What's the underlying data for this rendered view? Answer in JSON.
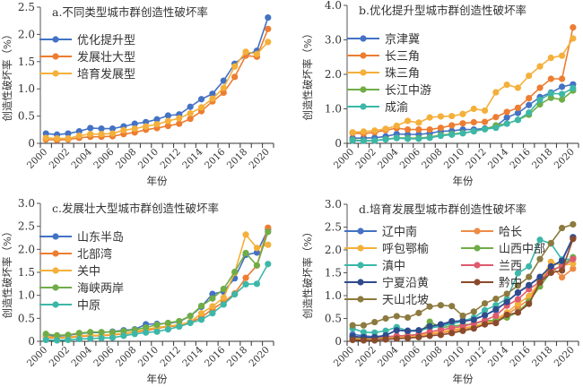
{
  "chart_data": [
    {
      "type": "line",
      "title": "a.不同类型城市群创造性破坏率",
      "xlabel": "年份",
      "ylabel": "创造性破坏率（%）",
      "ylim": [
        0,
        2.5
      ],
      "yticks": [
        "0",
        "0.5",
        "1.0",
        "1.5",
        "2.0",
        "2.5"
      ],
      "ytick_values": [
        0,
        0.5,
        1.0,
        1.5,
        2.0,
        2.5
      ],
      "x": [
        2000,
        2001,
        2002,
        2003,
        2004,
        2005,
        2006,
        2007,
        2008,
        2009,
        2010,
        2011,
        2012,
        2013,
        2014,
        2015,
        2016,
        2017,
        2018,
        2019,
        2020
      ],
      "xtick_labels": [
        "2000",
        "2002",
        "2004",
        "2006",
        "2008",
        "2010",
        "2012",
        "2014",
        "2016",
        "2018",
        "2020"
      ],
      "legend_columns": 1,
      "legend": "top-left",
      "series": [
        {
          "name": "优化提升型",
          "color": "#4472c4",
          "values": [
            0.18,
            0.16,
            0.18,
            0.22,
            0.28,
            0.27,
            0.27,
            0.31,
            0.36,
            0.39,
            0.44,
            0.51,
            0.53,
            0.67,
            0.81,
            0.91,
            1.15,
            1.46,
            1.62,
            1.7,
            2.31
          ]
        },
        {
          "name": "发展壮大型",
          "color": "#ed7d31",
          "values": [
            0.07,
            0.06,
            0.07,
            0.1,
            0.12,
            0.12,
            0.13,
            0.17,
            0.2,
            0.25,
            0.28,
            0.32,
            0.36,
            0.45,
            0.59,
            0.77,
            0.93,
            1.22,
            1.61,
            1.59,
            2.1
          ]
        },
        {
          "name": "培育发展型",
          "color": "#f4b03a",
          "values": [
            0.1,
            0.09,
            0.09,
            0.14,
            0.17,
            0.17,
            0.18,
            0.24,
            0.27,
            0.31,
            0.35,
            0.41,
            0.46,
            0.55,
            0.66,
            0.82,
            1.02,
            1.41,
            1.68,
            1.64,
            1.86
          ]
        }
      ]
    },
    {
      "type": "line",
      "title": "b.优化提升型城市群创造性破坏率",
      "xlabel": "年份",
      "ylabel": "创造性破坏率（%）",
      "ylim": [
        0,
        4.0
      ],
      "yticks": [
        "0",
        "1.0",
        "2.0",
        "3.0",
        "4.0"
      ],
      "ytick_values": [
        0,
        1.0,
        2.0,
        3.0,
        4.0
      ],
      "x": [
        2000,
        2001,
        2002,
        2003,
        2004,
        2005,
        2006,
        2007,
        2008,
        2009,
        2010,
        2011,
        2012,
        2013,
        2014,
        2015,
        2016,
        2017,
        2018,
        2019,
        2020
      ],
      "xtick_labels": [
        "2000",
        "2002",
        "2004",
        "2006",
        "2008",
        "2010",
        "2012",
        "2014",
        "2016",
        "2018",
        "2020"
      ],
      "legend_columns": 1,
      "legend": "top-left",
      "series": [
        {
          "name": "京津冀",
          "color": "#4472c4",
          "values": [
            0.15,
            0.15,
            0.16,
            0.2,
            0.27,
            0.26,
            0.26,
            0.29,
            0.35,
            0.36,
            0.4,
            0.4,
            0.43,
            0.49,
            0.75,
            0.88,
            1.11,
            1.34,
            1.47,
            1.64,
            1.71
          ]
        },
        {
          "name": "长三角",
          "color": "#ed7d31",
          "values": [
            0.3,
            0.28,
            0.32,
            0.38,
            0.44,
            0.4,
            0.4,
            0.4,
            0.45,
            0.52,
            0.58,
            0.61,
            0.62,
            0.76,
            0.91,
            1.03,
            1.31,
            1.61,
            1.87,
            1.87,
            3.36
          ]
        },
        {
          "name": "珠三角",
          "color": "#f4b03a",
          "values": [
            0.32,
            0.34,
            0.37,
            0.42,
            0.51,
            0.65,
            0.6,
            0.75,
            0.78,
            0.79,
            0.85,
            1.0,
            0.95,
            1.48,
            1.7,
            1.61,
            1.96,
            2.23,
            2.48,
            2.54,
            3.04
          ]
        },
        {
          "name": "长江中游",
          "color": "#70ad47",
          "values": [
            0.1,
            0.08,
            0.08,
            0.12,
            0.16,
            0.15,
            0.15,
            0.18,
            0.24,
            0.27,
            0.3,
            0.35,
            0.41,
            0.52,
            0.57,
            0.68,
            0.83,
            1.13,
            1.32,
            1.27,
            1.53
          ]
        },
        {
          "name": "成渝",
          "color": "#3cb7a8",
          "values": [
            0.08,
            0.07,
            0.08,
            0.11,
            0.15,
            0.13,
            0.13,
            0.16,
            0.22,
            0.25,
            0.29,
            0.35,
            0.41,
            0.45,
            0.57,
            0.68,
            0.89,
            1.26,
            1.45,
            1.43,
            1.6
          ]
        }
      ]
    },
    {
      "type": "line",
      "title": "c.发展壮大型城市群创造性破坏率",
      "xlabel": "年份",
      "ylabel": "创造性破坏率（%）",
      "ylim": [
        0,
        3.0
      ],
      "yticks": [
        "0",
        "0.5",
        "1.0",
        "1.5",
        "2.0",
        "2.5",
        "3.0"
      ],
      "ytick_values": [
        0,
        0.5,
        1.0,
        1.5,
        2.0,
        2.5,
        3.0
      ],
      "x": [
        2000,
        2001,
        2002,
        2003,
        2004,
        2005,
        2006,
        2007,
        2008,
        2009,
        2010,
        2011,
        2012,
        2013,
        2014,
        2015,
        2016,
        2017,
        2018,
        2019,
        2020
      ],
      "xtick_labels": [
        "2000",
        "2002",
        "2004",
        "2006",
        "2008",
        "2010",
        "2012",
        "2014",
        "2016",
        "2018",
        "2020"
      ],
      "legend_columns": 1,
      "legend": "top-left",
      "series": [
        {
          "name": "山东半岛",
          "color": "#4472c4",
          "values": [
            0.12,
            0.11,
            0.13,
            0.17,
            0.19,
            0.19,
            0.21,
            0.24,
            0.26,
            0.37,
            0.38,
            0.39,
            0.43,
            0.55,
            0.75,
            1.03,
            1.08,
            1.37,
            1.88,
            1.93,
            2.43
          ]
        },
        {
          "name": "北部湾",
          "color": "#ed7d31",
          "values": [
            0.08,
            0.07,
            0.08,
            0.1,
            0.12,
            0.12,
            0.14,
            0.16,
            0.2,
            0.23,
            0.28,
            0.32,
            0.34,
            0.42,
            0.52,
            0.7,
            0.85,
            1.04,
            1.38,
            1.65,
            2.47
          ]
        },
        {
          "name": "关中",
          "color": "#f4b03a",
          "values": [
            0.11,
            0.08,
            0.09,
            0.12,
            0.13,
            0.13,
            0.15,
            0.17,
            0.21,
            0.26,
            0.3,
            0.33,
            0.36,
            0.42,
            0.61,
            0.76,
            0.95,
            1.49,
            2.32,
            2.03,
            2.1
          ]
        },
        {
          "name": "海峡两岸",
          "color": "#70ad47",
          "values": [
            0.16,
            0.13,
            0.14,
            0.18,
            0.2,
            0.2,
            0.2,
            0.22,
            0.25,
            0.3,
            0.36,
            0.4,
            0.44,
            0.55,
            0.77,
            0.93,
            1.14,
            1.51,
            1.92,
            1.65,
            2.38
          ]
        },
        {
          "name": "中原",
          "color": "#3cb7a8",
          "values": [
            0.03,
            0.02,
            0.03,
            0.05,
            0.06,
            0.07,
            0.08,
            0.12,
            0.16,
            0.19,
            0.21,
            0.26,
            0.32,
            0.4,
            0.47,
            0.61,
            0.8,
            1.02,
            1.24,
            1.25,
            1.68
          ]
        }
      ]
    },
    {
      "type": "line",
      "title": "d.培育发展型城市群创造性破坏率",
      "xlabel": "年份",
      "ylabel": "创造性破坏率（%）",
      "ylim": [
        0,
        3.0
      ],
      "yticks": [
        "0",
        "0.5",
        "1.0",
        "1.5",
        "2.0",
        "2.5",
        "3.0"
      ],
      "ytick_values": [
        0,
        0.5,
        1.0,
        1.5,
        2.0,
        2.5,
        3.0
      ],
      "x": [
        2000,
        2001,
        2002,
        2003,
        2004,
        2005,
        2006,
        2007,
        2008,
        2009,
        2010,
        2011,
        2012,
        2013,
        2014,
        2015,
        2016,
        2017,
        2018,
        2019,
        2020
      ],
      "xtick_labels": [
        "2000",
        "2002",
        "2004",
        "2006",
        "2008",
        "2010",
        "2012",
        "2014",
        "2016",
        "2018",
        "2020"
      ],
      "legend_columns": 2,
      "legend": "top-left",
      "series": [
        {
          "name": "辽中南",
          "color": "#4472c4",
          "values": [
            0.15,
            0.12,
            0.1,
            0.13,
            0.25,
            0.22,
            0.23,
            0.3,
            0.34,
            0.42,
            0.46,
            0.49,
            0.57,
            0.68,
            0.87,
            1.06,
            1.22,
            1.4,
            1.62,
            1.78,
            2.28
          ]
        },
        {
          "name": "哈长",
          "color": "#ed8b45",
          "values": [
            0.06,
            0.05,
            0.05,
            0.07,
            0.09,
            0.09,
            0.11,
            0.15,
            0.18,
            0.22,
            0.26,
            0.31,
            0.38,
            0.45,
            0.59,
            0.74,
            0.92,
            1.28,
            1.65,
            1.4,
            1.59
          ]
        },
        {
          "name": "呼包鄂榆",
          "color": "#f4b03a",
          "values": [
            0.07,
            0.06,
            0.06,
            0.08,
            0.1,
            0.1,
            0.12,
            0.17,
            0.21,
            0.25,
            0.29,
            0.33,
            0.4,
            0.48,
            0.63,
            0.82,
            0.99,
            1.3,
            1.74,
            1.66,
            1.7
          ]
        },
        {
          "name": "山西中部",
          "color": "#70ad47",
          "values": [
            0.08,
            0.07,
            0.07,
            0.09,
            0.12,
            0.13,
            0.15,
            0.43,
            0.3,
            0.33,
            0.36,
            0.38,
            0.45,
            0.46,
            0.52,
            0.64,
            0.87,
            1.2,
            1.52,
            1.67,
            1.84
          ]
        },
        {
          "name": "滇中",
          "color": "#3cb7a8",
          "values": [
            0.28,
            0.2,
            0.19,
            0.23,
            0.31,
            0.23,
            0.24,
            0.29,
            0.33,
            0.38,
            0.44,
            0.52,
            0.68,
            0.79,
            0.93,
            1.49,
            1.64,
            2.22,
            2.14,
            1.79,
            1.8
          ]
        },
        {
          "name": "兰西",
          "color": "#e05a6e",
          "values": [
            0.1,
            0.08,
            0.08,
            0.1,
            0.12,
            0.12,
            0.15,
            0.21,
            0.25,
            0.29,
            0.33,
            0.39,
            0.46,
            0.56,
            0.78,
            0.92,
            1.14,
            1.3,
            1.57,
            1.63,
            1.8
          ]
        },
        {
          "name": "宁夏沿黄",
          "color": "#2f4b8c",
          "values": [
            0.11,
            0.09,
            0.09,
            0.13,
            0.24,
            0.23,
            0.24,
            0.33,
            0.37,
            0.44,
            0.44,
            0.47,
            0.57,
            0.7,
            0.86,
            1.07,
            1.23,
            1.41,
            1.64,
            1.76,
            2.27
          ]
        },
        {
          "name": "黔中",
          "color": "#8b4a2b",
          "values": [
            0.03,
            0.02,
            0.02,
            0.04,
            0.06,
            0.07,
            0.09,
            0.12,
            0.14,
            0.18,
            0.23,
            0.28,
            0.37,
            0.4,
            0.58,
            0.63,
            0.82,
            1.29,
            1.5,
            1.55,
            2.24
          ]
        },
        {
          "name": "天山北坡",
          "color": "#8c7a3f",
          "values": [
            0.35,
            0.35,
            0.42,
            0.5,
            0.55,
            0.52,
            0.62,
            0.76,
            0.79,
            0.77,
            0.56,
            0.65,
            0.83,
            0.93,
            1.04,
            1.22,
            1.41,
            1.8,
            2.15,
            2.48,
            2.56
          ]
        }
      ]
    }
  ]
}
